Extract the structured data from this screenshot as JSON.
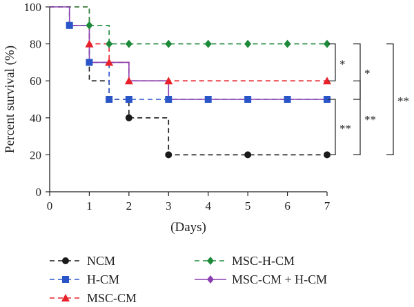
{
  "chart_data": {
    "type": "line",
    "step": true,
    "xlabel": "(Days)",
    "ylabel": "Percent survival (%)",
    "xlim": [
      0,
      7
    ],
    "ylim": [
      0,
      100
    ],
    "xticks": [
      "0",
      "1",
      "2",
      "3",
      "4",
      "5",
      "6",
      "7"
    ],
    "yticks": [
      "0",
      "20",
      "40",
      "60",
      "80",
      "100"
    ],
    "legend_position": "bottom",
    "series": [
      {
        "name": "NCM",
        "color": "#1a1a1a",
        "marker": "circle",
        "steps": [
          [
            0,
            100
          ],
          [
            0.5,
            90
          ],
          [
            1,
            60
          ],
          [
            1.5,
            50
          ],
          [
            2,
            40
          ],
          [
            3,
            20
          ],
          [
            7,
            20
          ]
        ],
        "markers": [
          [
            0.5,
            90
          ],
          [
            1.5,
            50
          ],
          [
            2,
            40
          ],
          [
            3,
            20
          ],
          [
            5,
            20
          ],
          [
            7,
            20
          ]
        ]
      },
      {
        "name": "H-CM",
        "color": "#2a55c9",
        "marker": "square",
        "steps": [
          [
            0,
            100
          ],
          [
            0.5,
            90
          ],
          [
            1,
            70
          ],
          [
            1.5,
            50
          ],
          [
            7,
            50
          ]
        ],
        "markers": [
          [
            0.5,
            90
          ],
          [
            1,
            70
          ],
          [
            1.5,
            50
          ],
          [
            2,
            50
          ],
          [
            3,
            50
          ],
          [
            4,
            50
          ],
          [
            5,
            50
          ],
          [
            6,
            50
          ],
          [
            7,
            50
          ]
        ]
      },
      {
        "name": "MSC-CM",
        "color": "#e8202a",
        "marker": "triangle",
        "steps": [
          [
            0,
            100
          ],
          [
            1,
            80
          ],
          [
            1.5,
            70
          ],
          [
            2,
            60
          ],
          [
            7,
            60
          ]
        ],
        "markers": [
          [
            1,
            80
          ],
          [
            1.5,
            70
          ],
          [
            2,
            60
          ],
          [
            3,
            60
          ],
          [
            7,
            60
          ]
        ]
      },
      {
        "name": "MSC-H-CM",
        "color": "#1d8a3a",
        "marker": "diamond",
        "steps": [
          [
            0,
            100
          ],
          [
            1,
            90
          ],
          [
            1.5,
            80
          ],
          [
            7,
            80
          ]
        ],
        "markers": [
          [
            1,
            90
          ],
          [
            1.5,
            80
          ],
          [
            2,
            80
          ],
          [
            3,
            80
          ],
          [
            4,
            80
          ],
          [
            5,
            80
          ],
          [
            6,
            80
          ],
          [
            7,
            80
          ]
        ]
      },
      {
        "name": "MSC-CM + H-CM",
        "color": "#8a3fb0",
        "marker": "diamond",
        "solid": true,
        "steps": [
          [
            0,
            100
          ],
          [
            0.5,
            90
          ],
          [
            1,
            70
          ],
          [
            2,
            60
          ],
          [
            3,
            50
          ],
          [
            7,
            50
          ]
        ],
        "markers": []
      }
    ],
    "significance": [
      {
        "between": [
          "MSC-H-CM",
          "MSC-CM"
        ],
        "label": "*"
      },
      {
        "between": [
          "MSC-H-CM",
          "H-CM"
        ],
        "label": "*"
      },
      {
        "between": [
          "H-CM",
          "NCM"
        ],
        "label": "**"
      },
      {
        "between": [
          "MSC-CM",
          "NCM"
        ],
        "label": "**"
      },
      {
        "between": [
          "MSC-H-CM",
          "NCM"
        ],
        "label": "**"
      }
    ]
  }
}
